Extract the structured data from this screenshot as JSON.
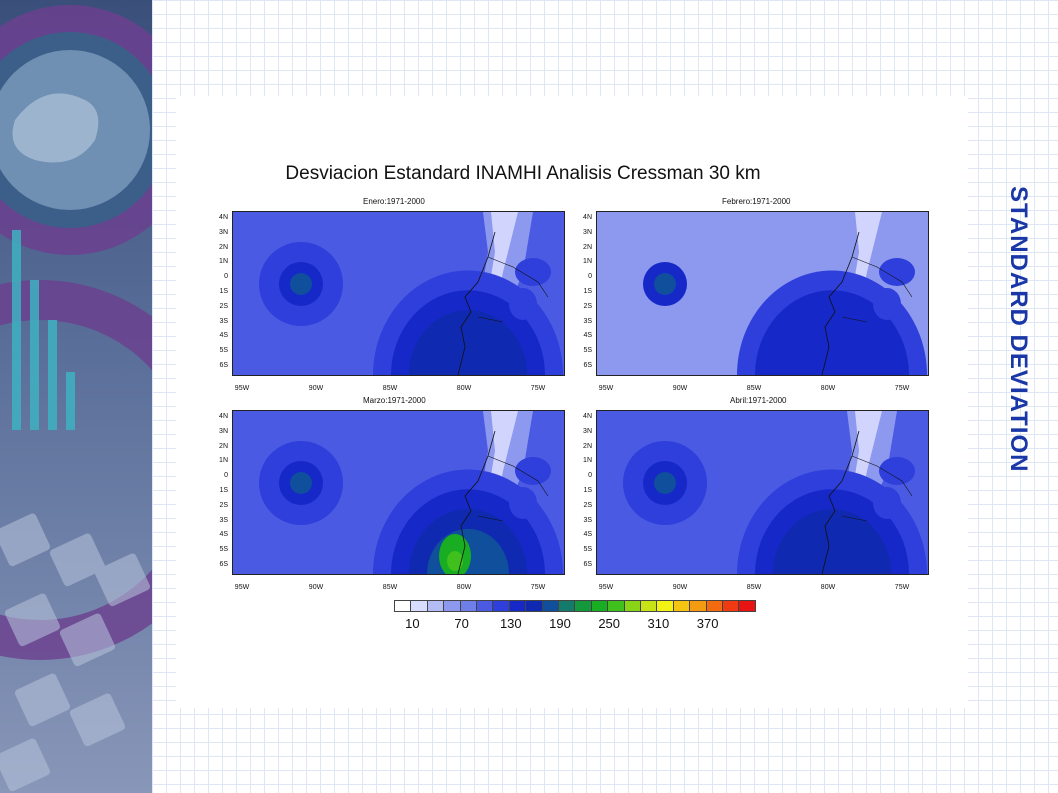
{
  "slide": {
    "side_title": "STANDARD DEVIATION",
    "figure_title": "Desviacion Estandard INAMHI Analisis Cressman 30 km"
  },
  "panels": [
    {
      "title": "Enero:1971-2000"
    },
    {
      "title": "Febrero:1971-2000"
    },
    {
      "title": "Marzo:1971-2000"
    },
    {
      "title": "Abril:1971-2000"
    }
  ],
  "axes": {
    "lat_ticks": [
      "4N",
      "3N",
      "2N",
      "1N",
      "0",
      "1S",
      "2S",
      "3S",
      "4S",
      "5S",
      "6S"
    ],
    "lon_ticks": [
      "95W",
      "90W",
      "85W",
      "80W",
      "75W"
    ]
  },
  "colorbar": {
    "colors": [
      "#ffffff",
      "#d8dcff",
      "#b4bcf5",
      "#8c99ee",
      "#6f7fe8",
      "#4a5ae2",
      "#2e3fdc",
      "#1628c8",
      "#0f2ab0",
      "#0f4f9c",
      "#137a6c",
      "#14983c",
      "#18ad22",
      "#3fc01c",
      "#8ad418",
      "#c8e416",
      "#f2f215",
      "#f6c512",
      "#f59b12",
      "#f36a11",
      "#ef3a12",
      "#e81414"
    ],
    "labels": [
      "10",
      "70",
      "130",
      "190",
      "250",
      "310",
      "370"
    ]
  },
  "colors": {
    "base_blue": "#4a5ae2",
    "pale_blue": "#8c99ee",
    "deep_blue": "#1628c8",
    "side_title": "#1a37a8"
  }
}
